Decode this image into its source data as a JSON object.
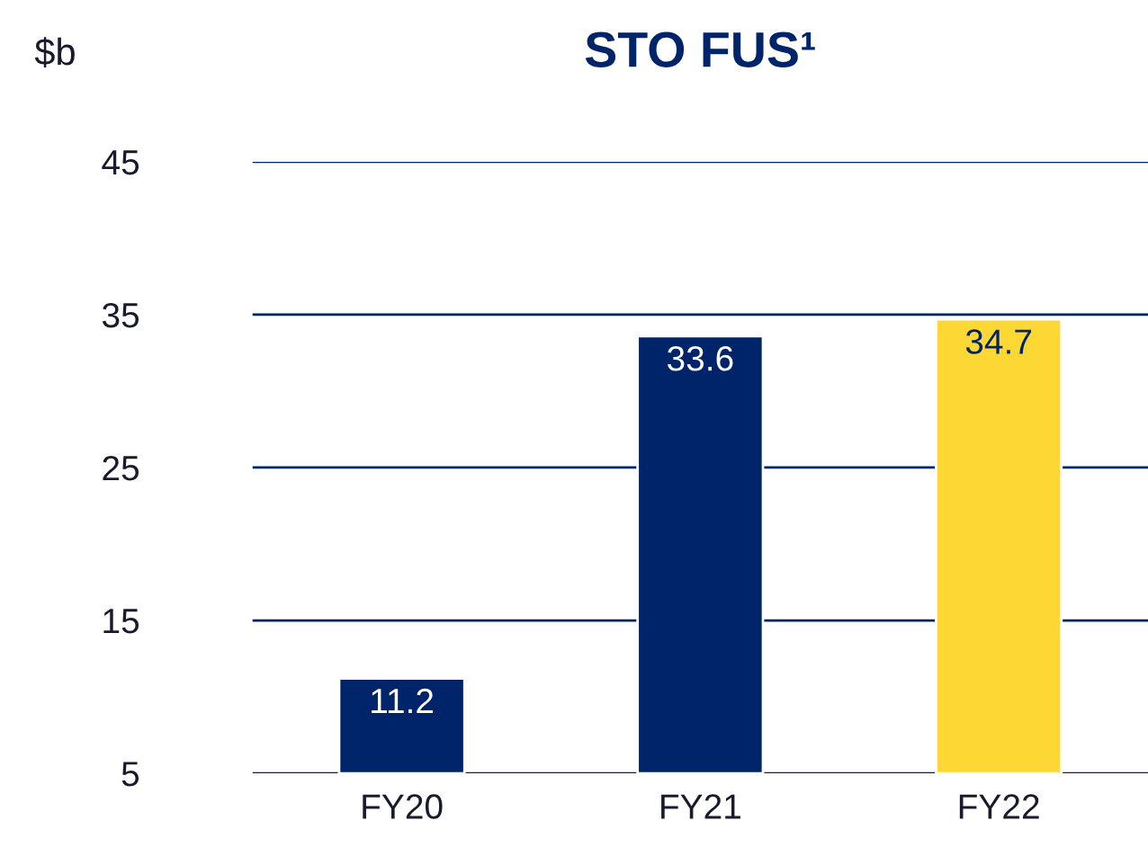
{
  "chart_data": {
    "type": "bar",
    "title": "STO FUS¹",
    "ylabel": "$b",
    "categories": [
      "FY20",
      "FY21",
      "FY22"
    ],
    "values": [
      11.2,
      33.6,
      34.7
    ],
    "colors": [
      "#002469",
      "#002469",
      "#fdd835"
    ],
    "ylim": [
      5,
      45
    ],
    "yticks": [
      5,
      15,
      25,
      35,
      45
    ],
    "grid": "y",
    "data_labels": true
  }
}
